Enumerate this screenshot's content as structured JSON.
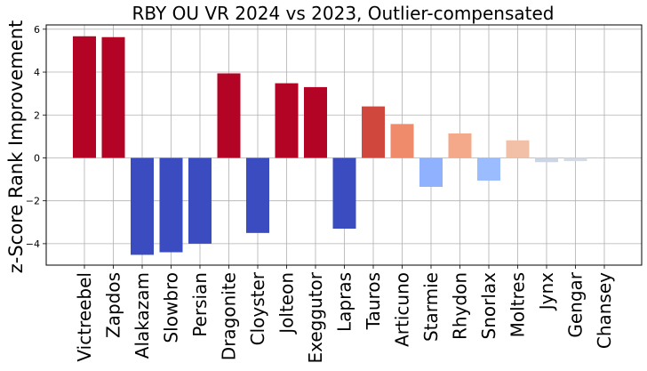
{
  "chart_data": {
    "type": "bar",
    "title": "RBY OU VR 2024 vs 2023, Outlier-compensated",
    "xlabel": "",
    "ylabel": "z-Score Rank Improvement",
    "ylim": [
      -5.0,
      6.2
    ],
    "yticks": [
      -4,
      -2,
      0,
      2,
      4,
      6
    ],
    "ytick_labels": [
      "−4",
      "−2",
      "0",
      "2",
      "4",
      "6"
    ],
    "grid": true,
    "categories": [
      "Victreebel",
      "Zapdos",
      "Alakazam",
      "Slowbro",
      "Persian",
      "Dragonite",
      "Cloyster",
      "Jolteon",
      "Exeggutor",
      "Lapras",
      "Tauros",
      "Articuno",
      "Starmie",
      "Rhydon",
      "Snorlax",
      "Moltres",
      "Jynx",
      "Gengar",
      "Chansey"
    ],
    "values": [
      5.67,
      5.63,
      -4.52,
      -4.4,
      -4.0,
      3.94,
      -3.5,
      3.48,
      3.3,
      -3.3,
      2.4,
      1.58,
      -1.35,
      1.14,
      -1.06,
      0.82,
      -0.2,
      -0.15,
      0.0
    ],
    "colors": [
      "#b40426",
      "#b40426",
      "#3b4cc0",
      "#3b4cc0",
      "#3b4cc0",
      "#b40426",
      "#3b4cc0",
      "#b40426",
      "#b40426",
      "#3b4cc0",
      "#d0473d",
      "#ef8b6a",
      "#8fb1fe",
      "#f4a98a",
      "#9bbcff",
      "#f2c0a7",
      "#ccd5e6",
      "#d5dbe5",
      "#dddddd"
    ]
  }
}
